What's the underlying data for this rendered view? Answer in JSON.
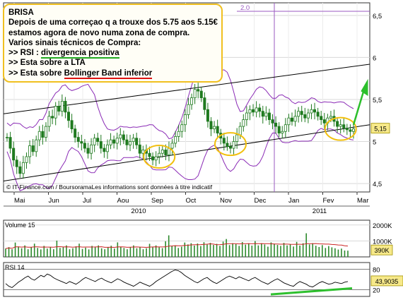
{
  "annotation": {
    "title": "BRISA",
    "line1": "Depois de uma correçao q a trouxe dos 5.75 aos 5.15€",
    "line2": "estamos agora de novo numa zona de compra.",
    "line3": "Varios sinais técnicos de Compra:",
    "bullet1_prefix": ">> RSI : ",
    "bullet1_highlight": "divergencia positiva",
    "bullet2": ">> Esta sobre a LTA",
    "bullet3_prefix": ">> Esta sobre ",
    "bullet3_highlight": "Bollinger Band inferior"
  },
  "source_text": "© IT-Finance.com / BoursoramaLes informations sont données à titre indicatif",
  "colors": {
    "candle": "#1f7a1f",
    "bollinger": "#8a2ab5",
    "trendline": "#000000",
    "circle": "#f2c00f",
    "arrow": "#2bbf2b",
    "volume_bar": "#2d8a2d",
    "volume_avg": "#cc2222",
    "rsi_line": "#000000",
    "rsi_divergence": "#2ec02e",
    "marker_line": "#9a5ac0"
  },
  "chart_data": [
    {
      "type": "candlestick",
      "title": "BRISA",
      "x_tick_labels": [
        "Mai",
        "Jun",
        "Jul",
        "Aou",
        "Sep",
        "Oct",
        "Nov",
        "Dec",
        "Jan",
        "Fev",
        "Mar"
      ],
      "year_labels": [
        "2010",
        "2011"
      ],
      "y_ticks": [
        6.5,
        6,
        5.5,
        5,
        4.5
      ],
      "y_tick_labels": [
        "6,5",
        "6",
        "5,5",
        "5",
        "4,5"
      ],
      "ylim": [
        4.4,
        6.65
      ],
      "grid": true,
      "last_price": 5.15,
      "last_price_label": "5,15",
      "marker_label": "2.0",
      "close_series": [
        5.05,
        4.92,
        4.78,
        4.7,
        4.62,
        4.75,
        4.82,
        4.95,
        4.88,
        5.02,
        5.12,
        5.05,
        5.18,
        5.3,
        5.28,
        5.42,
        5.36,
        5.48,
        5.35,
        5.25,
        5.15,
        5.05,
        5.0,
        4.98,
        4.92,
        4.86,
        4.96,
        5.04,
        5.0,
        4.92,
        4.88,
        4.96,
        5.02,
        4.98,
        5.04,
        5.08,
        5.02,
        4.96,
        5.0,
        5.04,
        4.96,
        4.86,
        4.9,
        4.86,
        4.82,
        4.78,
        4.82,
        4.86,
        4.9,
        4.84,
        4.92,
        4.98,
        5.06,
        5.12,
        5.2,
        5.32,
        5.44,
        5.52,
        5.62,
        5.6,
        5.52,
        5.38,
        5.24,
        5.15,
        5.18,
        5.1,
        5.04,
        4.98,
        4.94,
        4.92,
        5.0,
        5.08,
        5.18,
        5.26,
        5.34,
        5.38,
        5.35,
        5.4,
        5.36,
        5.3,
        5.34,
        5.26,
        5.22,
        5.18,
        5.1,
        5.12,
        5.2,
        5.28,
        5.24,
        5.3,
        5.36,
        5.32,
        5.28,
        5.34,
        5.38,
        5.35,
        5.3,
        5.26,
        5.22,
        5.28,
        5.3,
        5.24,
        5.18,
        5.2,
        5.16,
        5.14,
        5.12,
        5.15
      ]
    },
    {
      "type": "bar",
      "title": "Volume 15",
      "y_tick_labels": [
        "2000K",
        "1000K"
      ],
      "y_ticks": [
        2000,
        1000
      ],
      "ylim": [
        0,
        2300
      ],
      "last_value_label": "390K",
      "values": [
        520,
        610,
        480,
        900,
        650,
        540,
        720,
        480,
        610,
        830,
        560,
        470,
        690,
        520,
        610,
        480,
        1020,
        560,
        610,
        720,
        480,
        540,
        660,
        830,
        500,
        580,
        470,
        690,
        610,
        720,
        540,
        480,
        620,
        700,
        520,
        910,
        640,
        560,
        480,
        610,
        720,
        540,
        600,
        480,
        540,
        820,
        610,
        720,
        600,
        550,
        980,
        1350,
        680,
        720,
        560,
        640,
        900,
        780,
        860,
        710,
        840,
        680,
        920,
        770,
        880,
        750,
        820,
        690,
        960,
        1120,
        740,
        860,
        800,
        690,
        930,
        770,
        850,
        710,
        990,
        720,
        860,
        780,
        640,
        910,
        830,
        750,
        690,
        880,
        720,
        800,
        650,
        940,
        710,
        860,
        1480,
        780,
        860,
        700,
        620,
        740,
        560,
        680,
        600,
        540,
        460,
        520,
        400,
        390
      ],
      "avg_label": "15"
    },
    {
      "type": "line",
      "title": "RSI 14",
      "y_ticks": [
        80,
        20
      ],
      "y_tick_labels": [
        "80",
        "20"
      ],
      "ylim": [
        0,
        100
      ],
      "last_value_label": "43,9035",
      "values": [
        38,
        30,
        26,
        34,
        42,
        48,
        55,
        60,
        52,
        48,
        55,
        62,
        58,
        66,
        62,
        55,
        50,
        46,
        42,
        38,
        44,
        40,
        36,
        42,
        50,
        56,
        52,
        48,
        44,
        50,
        54,
        48,
        44,
        40,
        46,
        52,
        48,
        42,
        38,
        34,
        30,
        36,
        42,
        38,
        34,
        30,
        36,
        44,
        50,
        56,
        62,
        68,
        74,
        78,
        76,
        70,
        62,
        56,
        50,
        44,
        40,
        46,
        52,
        56,
        48,
        42,
        38,
        44,
        50,
        56,
        60,
        56,
        52,
        58,
        54,
        50,
        46,
        52,
        56,
        50,
        44,
        40,
        36,
        42,
        48,
        52,
        46,
        40,
        36,
        32,
        30,
        38,
        44,
        40,
        36,
        30,
        28,
        34,
        40,
        44,
        40,
        36,
        38,
        42,
        40,
        38,
        42,
        43.9
      ]
    }
  ]
}
